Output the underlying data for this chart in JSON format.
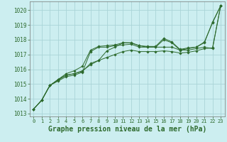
{
  "background_color": "#cceef0",
  "grid_color": "#aad4d8",
  "line_color": "#2d6a2d",
  "marker_color": "#2d6a2d",
  "xlabel": "Graphe pression niveau de la mer (hPa)",
  "xlabel_fontsize": 7,
  "ylim": [
    1012.8,
    1020.6
  ],
  "xlim": [
    -0.5,
    23.5
  ],
  "yticks": [
    1013,
    1014,
    1015,
    1016,
    1017,
    1018,
    1019,
    1020
  ],
  "xticks": [
    0,
    1,
    2,
    3,
    4,
    5,
    6,
    7,
    8,
    9,
    10,
    11,
    12,
    13,
    14,
    15,
    16,
    17,
    18,
    19,
    20,
    21,
    22,
    23
  ],
  "series": [
    [
      1013.3,
      1013.9,
      1014.9,
      1015.3,
      1015.6,
      1015.7,
      1015.9,
      1016.3,
      1016.6,
      1017.25,
      1017.5,
      1017.8,
      1017.8,
      1017.6,
      1017.5,
      1017.5,
      1018.0,
      1017.8,
      1017.3,
      1017.4,
      1017.5,
      1017.8,
      1019.2,
      1020.3
    ],
    [
      1013.3,
      1013.9,
      1014.9,
      1015.2,
      1015.5,
      1015.6,
      1015.8,
      1017.2,
      1017.5,
      1017.5,
      1017.6,
      1017.65,
      1017.7,
      1017.5,
      1017.5,
      1017.5,
      1017.5,
      1017.5,
      1017.3,
      1017.3,
      1017.4,
      1017.5,
      1017.4,
      1020.3
    ],
    [
      1013.3,
      1013.9,
      1014.9,
      1015.3,
      1015.7,
      1015.9,
      1016.2,
      1017.3,
      1017.55,
      1017.6,
      1017.65,
      1017.8,
      1017.78,
      1017.6,
      1017.55,
      1017.55,
      1018.1,
      1017.85,
      1017.35,
      1017.45,
      1017.5,
      1017.85,
      1019.15,
      1020.3
    ],
    [
      1013.3,
      1013.9,
      1014.9,
      1015.25,
      1015.6,
      1015.7,
      1015.85,
      1016.4,
      1016.6,
      1016.8,
      1017.0,
      1017.2,
      1017.3,
      1017.2,
      1017.2,
      1017.2,
      1017.25,
      1017.2,
      1017.1,
      1017.15,
      1017.25,
      1017.4,
      1017.45,
      1020.3
    ]
  ]
}
